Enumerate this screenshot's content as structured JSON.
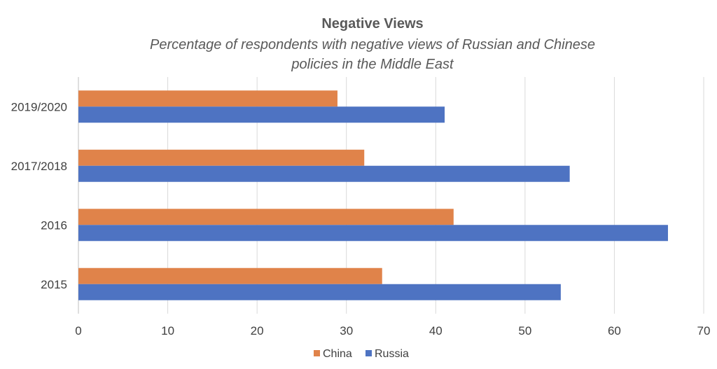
{
  "chart_data": {
    "type": "bar",
    "orientation": "horizontal",
    "title": "Negative Views",
    "subtitle": "Percentage of respondents with negative views of Russian and Chinese policies in the Middle East",
    "subtitle_lines": [
      "Percentage of respondents with negative views of Russian and Chinese",
      "policies in the Middle East"
    ],
    "categories": [
      "2019/2020",
      "2017/2018",
      "2016",
      "2015"
    ],
    "series": [
      {
        "name": "China",
        "color": "#E0834A",
        "values": [
          29,
          32,
          42,
          34
        ]
      },
      {
        "name": "Russia",
        "color": "#4E73C2",
        "values": [
          41,
          55,
          66,
          54
        ]
      }
    ],
    "xlim": [
      0,
      70
    ],
    "xticks": [
      0,
      10,
      20,
      30,
      40,
      50,
      60,
      70
    ],
    "grid": true,
    "legend_position": "bottom"
  }
}
